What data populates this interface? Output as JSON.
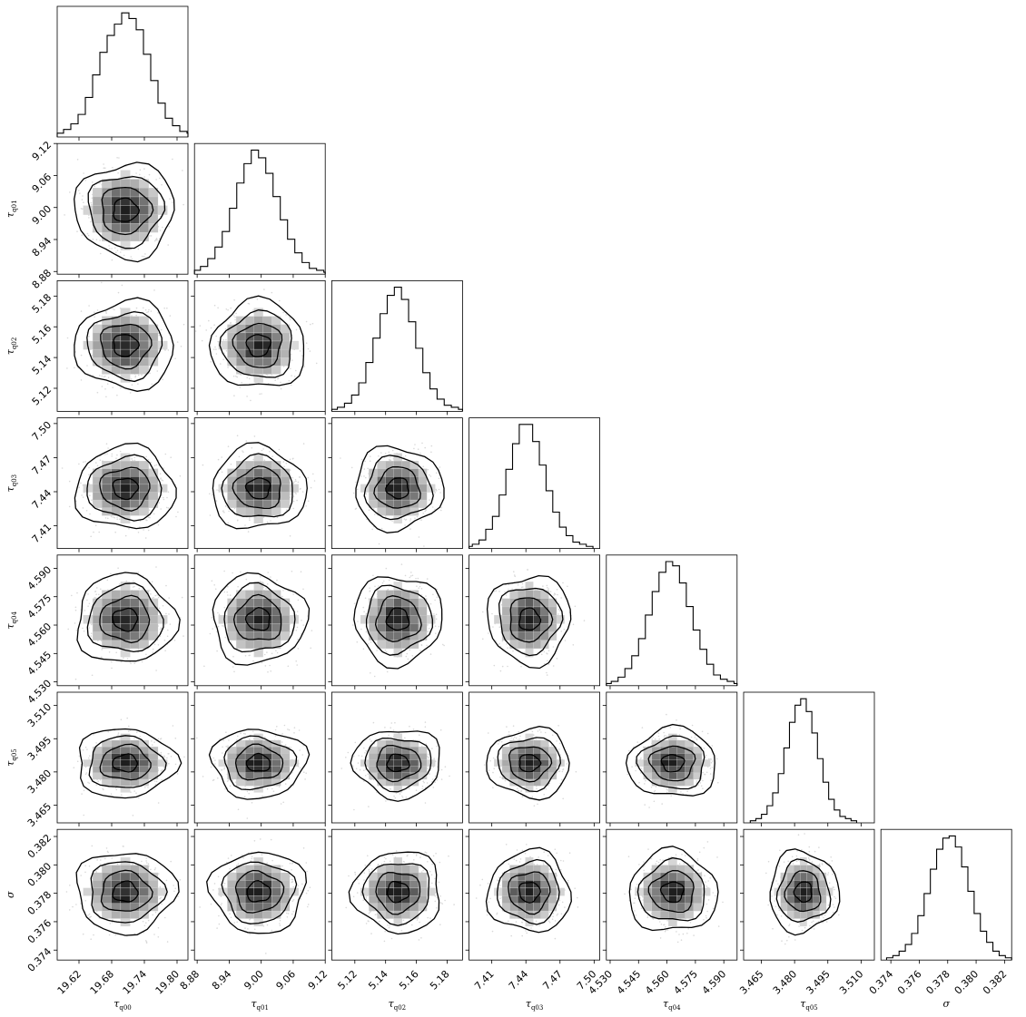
{
  "chart_data": {
    "type": "corner",
    "grid": false,
    "parameters": [
      {
        "label": "τ",
        "sub": "q00",
        "range": [
          19.58,
          19.82
        ],
        "ticks": [
          "19.62",
          "19.68",
          "19.74",
          "19.80"
        ],
        "mean": 19.705,
        "std": 0.035
      },
      {
        "label": "τ",
        "sub": "q01",
        "range": [
          8.875,
          9.12
        ],
        "ticks": [
          "8.88",
          "8.94",
          "9.00",
          "9.06",
          "9.12"
        ],
        "mean": 8.995,
        "std": 0.034
      },
      {
        "label": "τ",
        "sub": "q02",
        "range": [
          5.105,
          5.19
        ],
        "ticks": [
          "5.12",
          "5.14",
          "5.16",
          "5.18"
        ],
        "mean": 5.148,
        "std": 0.011
      },
      {
        "label": "τ",
        "sub": "q03",
        "range": [
          7.39,
          7.505
        ],
        "ticks": [
          "7.41",
          "7.44",
          "7.47",
          "7.50"
        ],
        "mean": 7.443,
        "std": 0.014
      },
      {
        "label": "τ",
        "sub": "q04",
        "range": [
          4.528,
          4.597
        ],
        "ticks": [
          "4.530",
          "4.545",
          "4.560",
          "4.575",
          "4.590"
        ],
        "mean": 4.563,
        "std": 0.009
      },
      {
        "label": "τ",
        "sub": "q05",
        "range": [
          3.457,
          3.516
        ],
        "ticks": [
          "3.465",
          "3.480",
          "3.495",
          "3.510"
        ],
        "mean": 3.484,
        "std": 0.006
      },
      {
        "label": "σ",
        "sub": "",
        "range": [
          0.3733,
          0.3825
        ],
        "ticks": [
          "0.374",
          "0.376",
          "0.378",
          "0.380",
          "0.382"
        ],
        "mean": 0.3781,
        "std": 0.0011
      }
    ],
    "histograms": [
      [
        1,
        2,
        4,
        7,
        12,
        21,
        33,
        45,
        54,
        60,
        66,
        63,
        57,
        44,
        30,
        18,
        10,
        6,
        3,
        2,
        1
      ],
      [
        1,
        2,
        4,
        8,
        14,
        22,
        34,
        47,
        57,
        64,
        60,
        52,
        40,
        28,
        18,
        11,
        6,
        3,
        2,
        1
      ],
      [
        1,
        2,
        4,
        8,
        14,
        24,
        36,
        48,
        57,
        61,
        55,
        44,
        31,
        19,
        11,
        6,
        3,
        2,
        1
      ],
      [
        1,
        2,
        4,
        9,
        15,
        25,
        37,
        49,
        58,
        58,
        50,
        39,
        27,
        17,
        10,
        6,
        3,
        2,
        1
      ],
      [
        1,
        2,
        4,
        8,
        14,
        22,
        33,
        44,
        53,
        58,
        56,
        48,
        37,
        26,
        17,
        10,
        5,
        3,
        2,
        1
      ],
      [
        1,
        2,
        4,
        8,
        14,
        23,
        35,
        47,
        55,
        58,
        52,
        42,
        30,
        19,
        11,
        6,
        3,
        2,
        1
      ],
      [
        1,
        2,
        4,
        7,
        12,
        20,
        30,
        41,
        50,
        55,
        56,
        51,
        42,
        31,
        21,
        13,
        8,
        4,
        2,
        1
      ]
    ],
    "contour_levels_sigma": [
      0.5,
      1.0,
      1.5,
      2.0
    ],
    "line_color": "#000000",
    "scatter_color": "#bfbfbf"
  }
}
